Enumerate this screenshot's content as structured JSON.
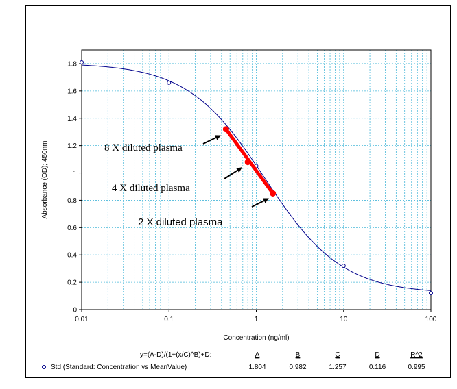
{
  "chart_data": {
    "type": "scatter",
    "xlabel": "Concentration (ng/ml)",
    "ylabel": "Absorbance (OD); 450nm",
    "x_scale": "log",
    "xlim": [
      0.01,
      100
    ],
    "ylim": [
      0,
      1.9
    ],
    "x_ticks": [
      "0.01",
      "0.1",
      "1",
      "10",
      "100"
    ],
    "y_ticks": [
      "0",
      "0.2",
      "0.4",
      "0.6",
      "0.8",
      "1",
      "1.2",
      "1.4",
      "1.6",
      "1.8"
    ],
    "grid": true,
    "colors": {
      "curve": "#00008b",
      "grid": "#49b8d9",
      "highlight": "#ff0000",
      "marker": "#00008b"
    },
    "standard_points": [
      {
        "x": 0.01,
        "y": 1.81
      },
      {
        "x": 0.1,
        "y": 1.66
      },
      {
        "x": 1,
        "y": 1.05
      },
      {
        "x": 10,
        "y": 0.32
      },
      {
        "x": 100,
        "y": 0.12
      }
    ],
    "fit": {
      "equation": "y=(A-D)/(1+(x/C)^B)+D:",
      "headers": [
        "A",
        "B",
        "C",
        "D",
        "R^2"
      ],
      "values": [
        "1.804",
        "0.982",
        "1.257",
        "0.116",
        "0.995"
      ],
      "params": {
        "A": 1.804,
        "B": 0.982,
        "C": 1.257,
        "D": 0.116
      }
    },
    "series_label": "Std (Standard: Concentration vs MeanValue)",
    "sample_points": [
      {
        "x": 0.45,
        "y": 1.32,
        "label": "8 X diluted plasma"
      },
      {
        "x": 0.8,
        "y": 1.08,
        "label": "4 X diluted plasma"
      },
      {
        "x": 1.55,
        "y": 0.85,
        "label": "2 X diluted plasma"
      }
    ]
  }
}
